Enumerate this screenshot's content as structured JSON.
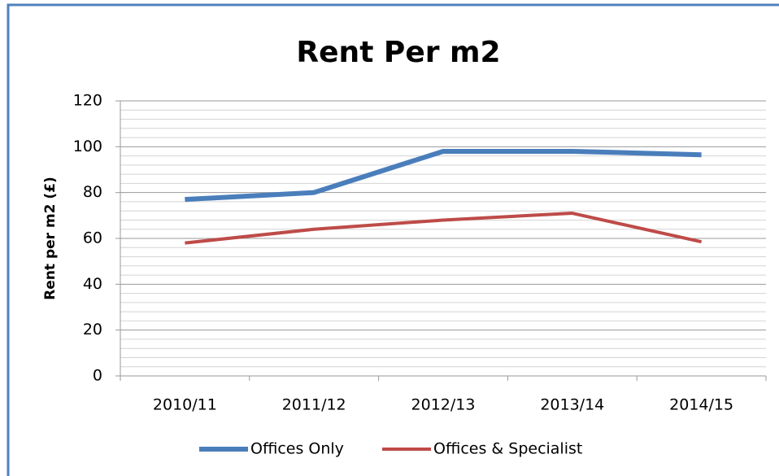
{
  "chart_data": {
    "type": "line",
    "title": "Rent Per m2",
    "y_label": "Rent per m2 (£)",
    "categories": [
      "2010/11",
      "2011/12",
      "2012/13",
      "2013/14",
      "2014/15"
    ],
    "series": [
      {
        "name": "Offices Only",
        "color": "#4a7ebb",
        "values": [
          77,
          80,
          98,
          98,
          96.5
        ]
      },
      {
        "name": "Offices & Specialist",
        "color": "#be4b48",
        "values": [
          58,
          64,
          68,
          71,
          58.5
        ]
      }
    ],
    "ylim": [
      0,
      120
    ],
    "yticks": [
      0,
      20,
      40,
      60,
      80,
      100,
      120
    ],
    "minor_yticks": [
      4,
      8,
      12,
      16,
      24,
      28,
      32,
      36,
      44,
      48,
      52,
      56,
      64,
      68,
      72,
      76,
      84,
      88,
      92,
      96,
      104,
      108,
      112,
      116
    ],
    "grid": true,
    "legend": "bottom"
  }
}
